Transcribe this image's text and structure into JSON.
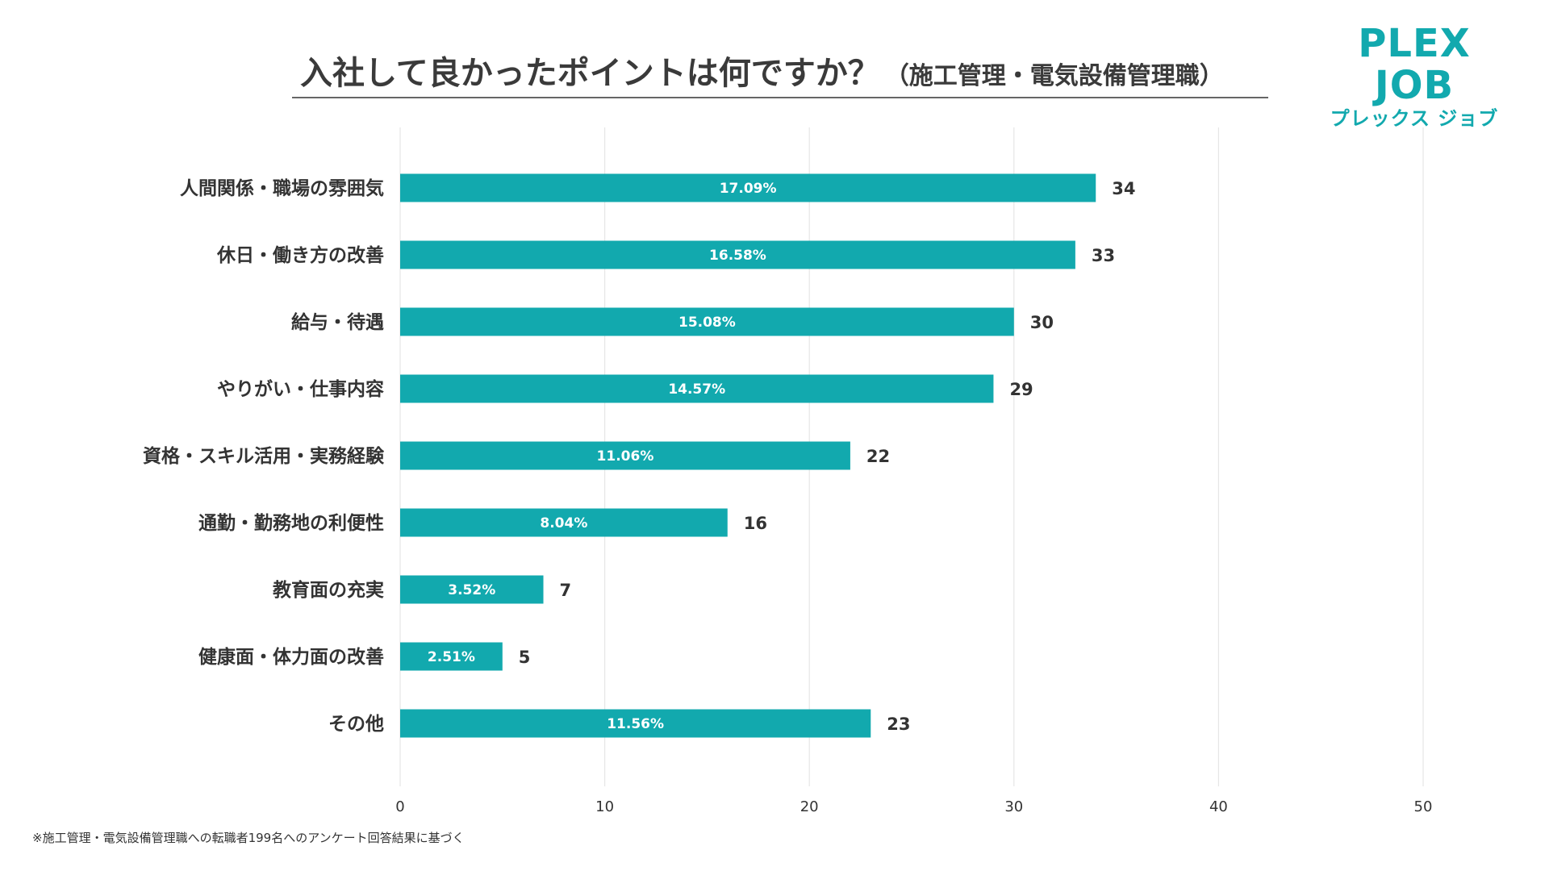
{
  "title": {
    "main": "入社して良かったポイントは何ですか？",
    "sub": "（施工管理・電気設備管理職）"
  },
  "logo": {
    "main": "PLEX JOB",
    "sub": "プレックス ジョブ"
  },
  "footnote": "※施工管理・電気設備管理職への転職者199名へのアンケート回答結果に基づく",
  "colors": {
    "bar": "#12a9ae",
    "grid": "#e6e6e6",
    "text": "#333333"
  },
  "chart_data": {
    "type": "bar",
    "orientation": "horizontal",
    "title": "入社して良かったポイントは何ですか？（施工管理・電気設備管理職）",
    "categories": [
      "人間関係・職場の雰囲気",
      "休日・働き方の改善",
      "給与・待遇",
      "やりがい・仕事内容",
      "資格・スキル活用・実務経験",
      "通勤・勤務地の利便性",
      "教育面の充実",
      "健康面・体力面の改善",
      "その他"
    ],
    "values": [
      34,
      33,
      30,
      29,
      22,
      16,
      7,
      5,
      23
    ],
    "percent_labels": [
      "17.09%",
      "16.58%",
      "15.08%",
      "14.57%",
      "11.06%",
      "8.04%",
      "3.52%",
      "2.51%",
      "11.56%"
    ],
    "xlim": [
      0,
      50
    ],
    "xticks": [
      0,
      10,
      20,
      30,
      40,
      50
    ],
    "xlabel": "",
    "ylabel": "",
    "grid": true
  }
}
